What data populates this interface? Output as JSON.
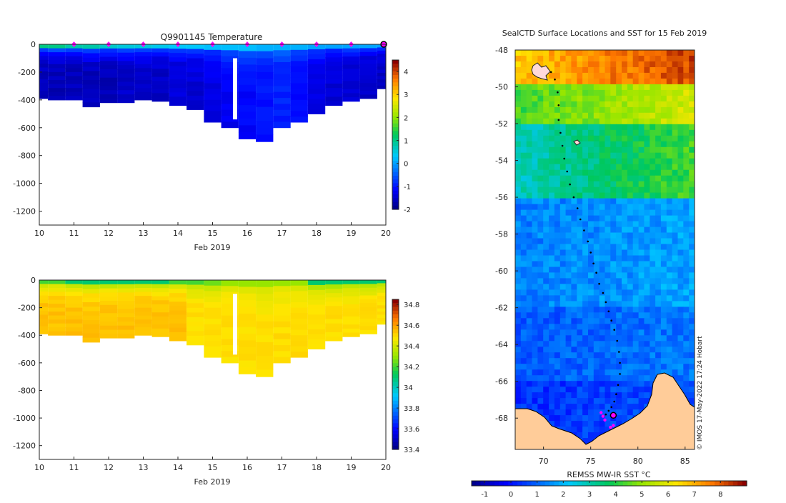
{
  "temp_panel": {
    "title": "Q9901145  Temperature",
    "xlabel": "Feb 2019",
    "x_ticks": [
      "10",
      "11",
      "12",
      "13",
      "14",
      "15",
      "16",
      "17",
      "18",
      "19",
      "20"
    ],
    "y_ticks": [
      "0",
      "-200",
      "-400",
      "-600",
      "-800",
      "-1000",
      "-1200"
    ],
    "colorbar_ticks": [
      "4",
      "3",
      "2",
      "1",
      "0",
      "-1",
      "-2"
    ]
  },
  "salt_panel": {
    "xlabel": "Feb 2019",
    "x_ticks": [
      "10",
      "11",
      "12",
      "13",
      "14",
      "15",
      "16",
      "17",
      "18",
      "19",
      "20"
    ],
    "y_ticks": [
      "0",
      "-200",
      "-400",
      "-600",
      "-800",
      "-1000",
      "-1200"
    ],
    "colorbar_ticks": [
      "34.8",
      "34.6",
      "34.4",
      "34.2",
      "34",
      "33.8",
      "33.6",
      "33.4"
    ]
  },
  "map_panel": {
    "title": "SealCTD Surface Locations and SST for 15 Feb 2019",
    "x_ticks": [
      "70",
      "75",
      "80",
      "85"
    ],
    "y_ticks": [
      "-48",
      "-50",
      "-52",
      "-54",
      "-56",
      "-58",
      "-60",
      "-62",
      "-64",
      "-66",
      "-68"
    ],
    "colorbar_label": "REMSS MW-IR SST °C",
    "colorbar_ticks": [
      "-1",
      "0",
      "1",
      "2",
      "3",
      "4",
      "5",
      "6",
      "7",
      "8"
    ],
    "credit": "© IMOS 17-May-2022 17:24 Hobart"
  },
  "colors": {
    "land": "#ffcc99",
    "marker": "#ff00ff",
    "track": "#000000"
  },
  "chart_data": [
    {
      "type": "heatmap",
      "title": "Q9901145  Temperature",
      "xlabel": "Feb 2019",
      "ylabel": "",
      "xlim": [
        10,
        20
      ],
      "ylim": [
        -1300,
        0
      ],
      "colorbar_range": [
        -2,
        4.5
      ],
      "profile_dates": [
        10.0,
        10.5,
        11.0,
        11.5,
        12.0,
        12.5,
        13.0,
        13.5,
        14.0,
        14.5,
        15.0,
        15.5,
        16.0,
        16.5,
        17.0,
        17.5,
        18.0,
        18.5,
        19.0,
        19.5,
        20.0
      ],
      "max_depth_m": [
        -390,
        -400,
        -400,
        -450,
        -420,
        -420,
        -400,
        -410,
        -440,
        -470,
        -560,
        -600,
        -680,
        -700,
        -600,
        -560,
        -500,
        -440,
        -410,
        -390,
        -320
      ],
      "surface_temperature_c": [
        1.0,
        1.0,
        0.8,
        0.8,
        0.6,
        0.5,
        0.5,
        0.4,
        0.3,
        0.3,
        0.2,
        0.2,
        0.2,
        0.1,
        0.1,
        0.1,
        0.0,
        0.0,
        0.0,
        0.0,
        0.0
      ],
      "deep_temperature_c": [
        -1.7,
        -1.7,
        -1.7,
        -1.7,
        -1.7,
        -1.6,
        -1.6,
        -1.6,
        -1.5,
        -1.5,
        -1.4,
        -1.3,
        -1.2,
        -1.1,
        -1.0,
        -1.2,
        -1.4,
        -1.5,
        -1.5,
        -1.6,
        -1.6
      ],
      "surface_marker_dates": [
        11,
        12,
        13,
        14,
        15,
        16,
        17,
        18,
        19
      ],
      "last_position_date": 20
    },
    {
      "type": "heatmap",
      "title": "",
      "xlabel": "Feb 2019",
      "ylabel": "",
      "xlim": [
        10,
        20
      ],
      "ylim": [
        -1300,
        0
      ],
      "colorbar_range": [
        33.4,
        34.85
      ],
      "profile_dates": [
        10.0,
        10.5,
        11.0,
        11.5,
        12.0,
        12.5,
        13.0,
        13.5,
        14.0,
        14.5,
        15.0,
        15.5,
        16.0,
        16.5,
        17.0,
        17.5,
        18.0,
        18.5,
        19.0,
        19.5,
        20.0
      ],
      "max_depth_m": [
        -390,
        -400,
        -400,
        -450,
        -420,
        -420,
        -400,
        -410,
        -440,
        -470,
        -560,
        -600,
        -680,
        -700,
        -600,
        -560,
        -500,
        -440,
        -410,
        -390,
        -320
      ],
      "surface_salinity": [
        34.2,
        34.2,
        34.1,
        34.1,
        34.1,
        34.1,
        34.1,
        34.1,
        34.2,
        34.2,
        34.25,
        34.3,
        34.3,
        34.3,
        34.3,
        34.3,
        34.1,
        34.1,
        34.1,
        34.1,
        34.1
      ],
      "deep_salinity": [
        34.55,
        34.55,
        34.55,
        34.55,
        34.55,
        34.55,
        34.55,
        34.55,
        34.55,
        34.5,
        34.5,
        34.5,
        34.5,
        34.5,
        34.5,
        34.5,
        34.5,
        34.5,
        34.5,
        34.5,
        34.5
      ]
    },
    {
      "type": "scatter",
      "title": "SealCTD Surface Locations and SST for 15 Feb 2019",
      "xlabel": "",
      "ylabel": "",
      "xlim": [
        67,
        86
      ],
      "ylim": [
        -69.7,
        -48
      ],
      "colorbar_label": "REMSS MW-IR SST °C",
      "colorbar_range": [
        -1.5,
        9
      ],
      "track": {
        "lon": [
          70.8,
          71.2,
          71.5,
          71.6,
          71.6,
          71.8,
          72.0,
          72.2,
          72.5,
          72.8,
          73.2,
          73.6,
          73.9,
          74.3,
          74.7,
          75.0,
          75.3,
          75.6,
          75.9,
          76.3,
          76.6,
          76.9,
          77.2,
          77.5,
          77.8,
          78.0,
          78.1,
          78.1,
          77.9,
          77.7,
          77.5,
          77.2,
          76.9,
          76.6,
          76.4
        ],
        "lat": [
          -49.2,
          -49.6,
          -50.3,
          -51.0,
          -51.8,
          -52.5,
          -53.2,
          -53.9,
          -54.6,
          -55.3,
          -56.0,
          -56.6,
          -57.2,
          -57.8,
          -58.4,
          -59.0,
          -59.6,
          -60.1,
          -60.7,
          -61.2,
          -61.7,
          -62.2,
          -62.7,
          -63.2,
          -63.8,
          -64.4,
          -65.0,
          -65.6,
          -66.2,
          -66.7,
          -67.1,
          -67.4,
          -67.6,
          -67.8,
          -67.9
        ]
      },
      "magenta_positions": {
        "lon": [
          76.1,
          76.3,
          76.5,
          77.1,
          77.4
        ],
        "lat": [
          -67.7,
          -67.9,
          -68.1,
          -68.5,
          -68.4
        ]
      },
      "last_position": {
        "lon": 77.4,
        "lat": -67.85
      },
      "sst_regions_c": {
        "north_of_50S": 7.5,
        "50S_to_52S": 5.0,
        "52S_to_56S": 3.5,
        "56S_to_62S": 1.5,
        "62S_to_66S": 1.0,
        "south_of_66S": 0.5
      }
    }
  ]
}
